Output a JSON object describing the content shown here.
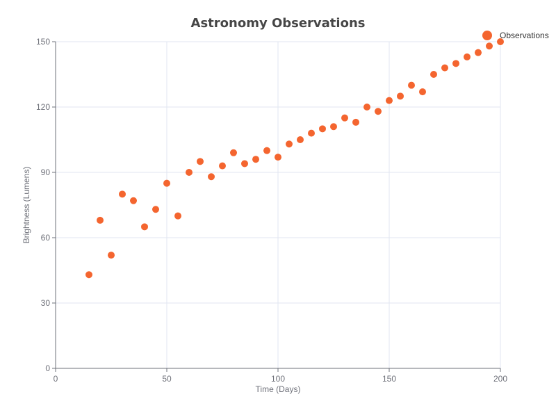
{
  "chart_data": {
    "type": "scatter",
    "title": "Astronomy Observations",
    "xlabel": "Time (Days)",
    "ylabel": "Brightness (Lumens)",
    "xlim": [
      0,
      200
    ],
    "ylim": [
      0,
      150
    ],
    "xticks": [
      0,
      50,
      100,
      150,
      200
    ],
    "yticks": [
      0,
      30,
      60,
      90,
      120,
      150
    ],
    "grid": true,
    "legend_position": "top-right",
    "series": [
      {
        "name": "Observations",
        "color": "#f4652f",
        "points": [
          [
            15,
            43
          ],
          [
            20,
            68
          ],
          [
            25,
            52
          ],
          [
            30,
            80
          ],
          [
            35,
            77
          ],
          [
            40,
            65
          ],
          [
            45,
            73
          ],
          [
            50,
            85
          ],
          [
            55,
            70
          ],
          [
            60,
            90
          ],
          [
            65,
            95
          ],
          [
            70,
            88
          ],
          [
            75,
            93
          ],
          [
            80,
            99
          ],
          [
            85,
            94
          ],
          [
            90,
            96
          ],
          [
            95,
            100
          ],
          [
            100,
            97
          ],
          [
            105,
            103
          ],
          [
            110,
            105
          ],
          [
            115,
            108
          ],
          [
            120,
            110
          ],
          [
            125,
            111
          ],
          [
            130,
            115
          ],
          [
            135,
            113
          ],
          [
            140,
            120
          ],
          [
            145,
            118
          ],
          [
            150,
            123
          ],
          [
            155,
            125
          ],
          [
            160,
            130
          ],
          [
            165,
            127
          ],
          [
            170,
            135
          ],
          [
            175,
            138
          ],
          [
            180,
            140
          ],
          [
            185,
            143
          ],
          [
            190,
            145
          ],
          [
            195,
            148
          ],
          [
            200,
            150
          ]
        ]
      }
    ]
  }
}
